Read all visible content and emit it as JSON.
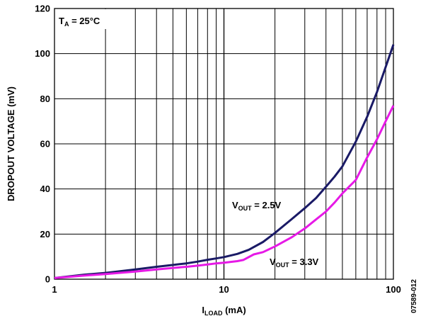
{
  "chart_data": {
    "type": "line",
    "xscale": "log",
    "xlim": [
      1,
      100
    ],
    "ylim": [
      0,
      120
    ],
    "grid": true,
    "xlabel": {
      "main": "I",
      "sub": "LOAD",
      "tail": " (mA)"
    },
    "ylabel": "DROPOUT VOLTAGE (mV)",
    "x_ticks": [
      1,
      10,
      100
    ],
    "x_tick_labels": [
      "1",
      "10",
      "100"
    ],
    "y_ticks": [
      0,
      20,
      40,
      60,
      80,
      100,
      120
    ],
    "y_tick_labels": [
      "0",
      "20",
      "40",
      "60",
      "80",
      "100",
      "120"
    ],
    "annotations": {
      "temp": {
        "main": "T",
        "sub": "A",
        "tail": " = 25°C"
      },
      "v25": {
        "main": "V",
        "sub": "OUT",
        "tail": " = 2.5V"
      },
      "v33": {
        "main": "V",
        "sub": "OUT",
        "tail": " = 3.3V"
      }
    },
    "figure_code": "07589-012",
    "series": [
      {
        "color": "#1a1a66",
        "x": [
          1,
          1.5,
          2,
          3,
          4,
          5,
          6,
          7,
          8,
          9,
          10,
          12,
          14,
          17,
          20,
          25,
          30,
          35,
          40,
          45,
          50,
          60,
          70,
          80,
          90,
          100
        ],
        "y": [
          0.5,
          2,
          2.8,
          4.3,
          5.5,
          6.3,
          7,
          7.8,
          8.6,
          9.2,
          9.8,
          11.2,
          13,
          16.5,
          20.5,
          26.5,
          31.5,
          36,
          41,
          45.5,
          50,
          61,
          72,
          83,
          94,
          104
        ]
      },
      {
        "color": "#e619e6",
        "x": [
          1,
          1.5,
          2,
          3,
          4,
          5,
          6,
          7,
          8,
          9,
          10,
          12,
          13,
          15,
          17,
          20,
          25,
          30,
          35,
          40,
          45,
          50,
          60,
          70,
          80,
          90,
          100
        ],
        "y": [
          0.5,
          1.6,
          2.3,
          3.4,
          4.3,
          5,
          5.5,
          6,
          6.5,
          7,
          7.3,
          8,
          8.5,
          11,
          12,
          14.5,
          18.5,
          22.5,
          26.5,
          30,
          34,
          38,
          44,
          54,
          62,
          70,
          77
        ]
      }
    ]
  }
}
